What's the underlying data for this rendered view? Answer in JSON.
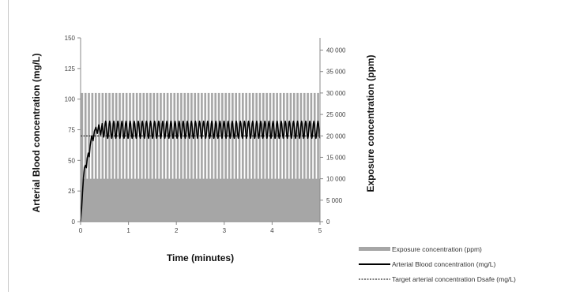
{
  "chart_data": {
    "type": "bar+line",
    "x_axis": {
      "label": "Time (minutes)",
      "range": [
        0,
        5
      ],
      "ticks": [
        "0",
        "1",
        "2",
        "3",
        "4",
        "5"
      ]
    },
    "y_axis_left": {
      "label": "Arterial Blood concentration  (mg/L)",
      "range": [
        0,
        150
      ],
      "ticks": [
        "0",
        "25",
        "50",
        "75",
        "100",
        "125",
        "150"
      ]
    },
    "y_axis_right": {
      "label": "Exposure concentration  (ppm)",
      "range": [
        0,
        42857
      ],
      "ticks": [
        "0",
        "5 000",
        "10 000",
        "15 000",
        "20 000",
        "25 000",
        "30 000",
        "35 000",
        "40 000"
      ]
    },
    "series": [
      {
        "name": "Exposure concentration (ppm)",
        "type": "bar",
        "axis": "right",
        "color": "#a6a6a6",
        "baseline_ppm": 10000,
        "pulse_ppm": 30000,
        "pulse_count": 70
      },
      {
        "name": "Arterial Blood concentration (mg/L)",
        "type": "line",
        "axis": "left",
        "color": "#000000",
        "points": [
          [
            0.0,
            0
          ],
          [
            0.02,
            10
          ],
          [
            0.04,
            24
          ],
          [
            0.06,
            36
          ],
          [
            0.08,
            44
          ],
          [
            0.1,
            46
          ],
          [
            0.12,
            44
          ],
          [
            0.14,
            52
          ],
          [
            0.16,
            56
          ],
          [
            0.18,
            53
          ],
          [
            0.2,
            62
          ],
          [
            0.23,
            70
          ],
          [
            0.26,
            66
          ],
          [
            0.29,
            74
          ],
          [
            0.32,
            77
          ],
          [
            0.35,
            72
          ],
          [
            0.38,
            79
          ],
          [
            0.42,
            71
          ],
          [
            0.45,
            80
          ],
          [
            0.48,
            69
          ]
        ],
        "steady_state": {
          "from": 0.48,
          "to": 5.0,
          "min": 68,
          "max": 82,
          "cycles": 53
        }
      },
      {
        "name": "Target arterial concentration Dsafe (mg/L)",
        "type": "line",
        "style": "dashed",
        "axis": "left",
        "color": "#000000",
        "value": 70
      }
    ],
    "legend": {
      "placement": "right",
      "items": [
        {
          "label": "Exposure concentration (ppm)",
          "swatch": "bar",
          "color": "#a6a6a6"
        },
        {
          "label": "Arterial Blood concentration (mg/L)",
          "swatch": "line",
          "color": "#000000"
        },
        {
          "label": "Target arterial concentration Dsafe (mg/L)",
          "swatch": "dashed",
          "color": "#000000"
        }
      ]
    },
    "grid": false
  }
}
